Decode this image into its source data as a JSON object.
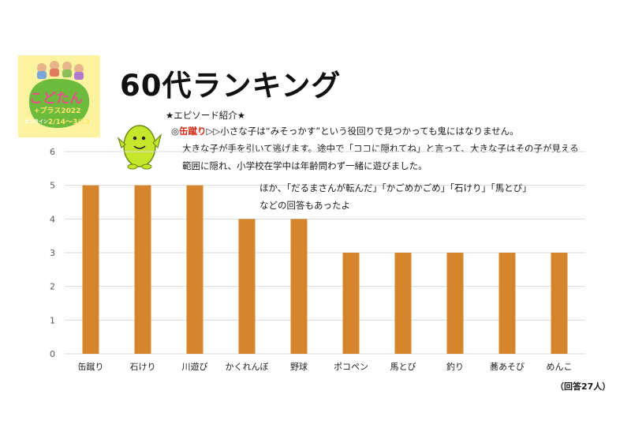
{
  "logo": {
    "line1": "こどたん",
    "line2": "+プラス2022",
    "dates": "2/14～3/13",
    "label": "オンライン",
    "colors": {
      "bg": "#fbf3a0",
      "blob": "#6dbb3c",
      "text": "#e94e8a"
    }
  },
  "title": "60代ランキング",
  "episode": {
    "heading": "★エピソード紹介★",
    "line1_prefix": "◎",
    "line1_highlight": "缶蹴り",
    "line1_rest": "▷▷小さな子は“みそっかす”という役回りで見つかっても鬼にはなりません。",
    "line2": "大きな子が手を引いて逃げます。途中で「ココに隠れてね」と言って、大きな子はその子が見える",
    "line3": "範囲に隠れ、小学校在学中は年齢問わず一緒に遊びました。"
  },
  "other_answers": {
    "line1": "ほか、「だるまさんが転んだ」「かごめかごめ」「石けり」「馬とび」",
    "line2": "などの回答もあったよ"
  },
  "respondents_note": "（回答27人）",
  "colors": {
    "bar": "#d5852b",
    "grid": "#d9d9d9",
    "axis_text": "#595959",
    "highlight": "#d62b16"
  },
  "chart_data": {
    "type": "bar",
    "categories": [
      "缶蹴り",
      "石けり",
      "川遊び",
      "かくれんぼ",
      "野球",
      "ポコペン",
      "馬とび",
      "釣り",
      "蕎あそび",
      "めんこ"
    ],
    "values": [
      5,
      5,
      5,
      4,
      4,
      3,
      3,
      3,
      3,
      3
    ],
    "ylim": [
      0,
      6
    ],
    "yticks": [
      0,
      1,
      2,
      3,
      4,
      5,
      6
    ],
    "grid": true,
    "title": "",
    "xlabel": "",
    "ylabel": ""
  }
}
